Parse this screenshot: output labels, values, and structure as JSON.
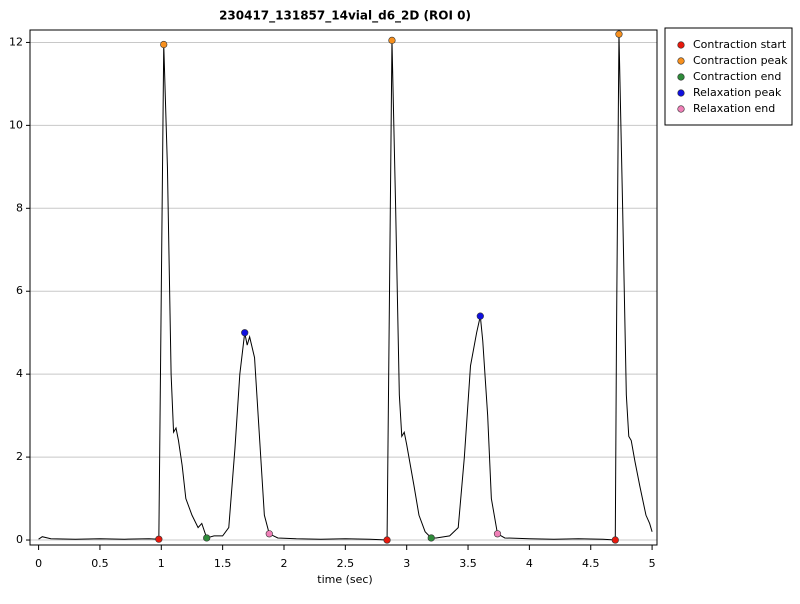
{
  "chart_data": {
    "type": "line",
    "title": "230417_131857_14vial_d6_2D (ROI 0)",
    "x_label": "time (sec)",
    "xlim": [
      -0.07,
      5.04
    ],
    "xticks": [
      0,
      0.5,
      1,
      1.5,
      2,
      2.5,
      3,
      3.5,
      4,
      4.5,
      5
    ],
    "ylim": [
      -0.12,
      12.3
    ],
    "yticks": [
      0,
      2,
      4,
      6,
      8,
      10,
      12
    ],
    "grid": true,
    "legend": "outside-right",
    "series": [
      {
        "type": "line",
        "color": "#000000",
        "x": [
          0,
          0.03,
          0.1,
          0.3,
          0.5,
          0.7,
          0.9,
          0.98,
          1.0,
          1.02,
          1.05,
          1.08,
          1.1,
          1.12,
          1.14,
          1.17,
          1.2,
          1.25,
          1.3,
          1.33,
          1.37,
          1.43,
          1.5,
          1.55,
          1.6,
          1.64,
          1.68,
          1.7,
          1.72,
          1.76,
          1.8,
          1.84,
          1.88,
          1.95,
          2.1,
          2.3,
          2.5,
          2.7,
          2.84,
          2.86,
          2.88,
          2.91,
          2.94,
          2.96,
          2.98,
          3.0,
          3.03,
          3.06,
          3.1,
          3.15,
          3.2,
          3.24,
          3.35,
          3.42,
          3.47,
          3.52,
          3.57,
          3.6,
          3.62,
          3.66,
          3.69,
          3.74,
          3.8,
          4.0,
          4.2,
          4.4,
          4.6,
          4.7,
          4.71,
          4.73,
          4.76,
          4.79,
          4.81,
          4.83,
          4.86,
          4.9,
          4.95,
          4.98,
          5.0
        ],
        "values": [
          0.02,
          0.08,
          0.03,
          0.02,
          0.03,
          0.02,
          0.03,
          0.02,
          6,
          11.95,
          9,
          4,
          2.6,
          2.7,
          2.4,
          1.8,
          1.0,
          0.6,
          0.3,
          0.4,
          0.05,
          0.1,
          0.1,
          0.3,
          2.2,
          4.0,
          5.0,
          4.7,
          4.9,
          4.4,
          2.5,
          0.6,
          0.15,
          0.05,
          0.03,
          0.02,
          0.03,
          0.02,
          0.0,
          6,
          12.05,
          8,
          3.5,
          2.5,
          2.6,
          2.3,
          1.8,
          1.3,
          0.6,
          0.2,
          0.05,
          0.05,
          0.1,
          0.3,
          2.0,
          4.2,
          5.0,
          5.4,
          4.8,
          3.0,
          1.0,
          0.15,
          0.05,
          0.03,
          0.02,
          0.03,
          0.02,
          0.0,
          5,
          12.2,
          8,
          3.5,
          2.5,
          2.4,
          1.9,
          1.3,
          0.6,
          0.4,
          0.2
        ]
      },
      {
        "type": "scatter",
        "name": "Contraction start",
        "color": "#e8180c",
        "x": [
          0.98,
          2.84,
          4.7
        ],
        "values": [
          0.02,
          0.0,
          0.0
        ]
      },
      {
        "type": "scatter",
        "name": "Contraction peak",
        "color": "#f7901e",
        "x": [
          1.02,
          2.88,
          4.73
        ],
        "values": [
          11.95,
          12.05,
          12.2
        ]
      },
      {
        "type": "scatter",
        "name": "Contraction end",
        "color": "#2e8b3a",
        "x": [
          1.37,
          3.2
        ],
        "values": [
          0.05,
          0.05
        ]
      },
      {
        "type": "scatter",
        "name": "Relaxation peak",
        "color": "#1010e0",
        "x": [
          1.68,
          3.6
        ],
        "values": [
          5.0,
          5.4
        ]
      },
      {
        "type": "scatter",
        "name": "Relaxation end",
        "color": "#f080b8",
        "x": [
          1.88,
          3.74
        ],
        "values": [
          0.15,
          0.15
        ]
      }
    ]
  }
}
